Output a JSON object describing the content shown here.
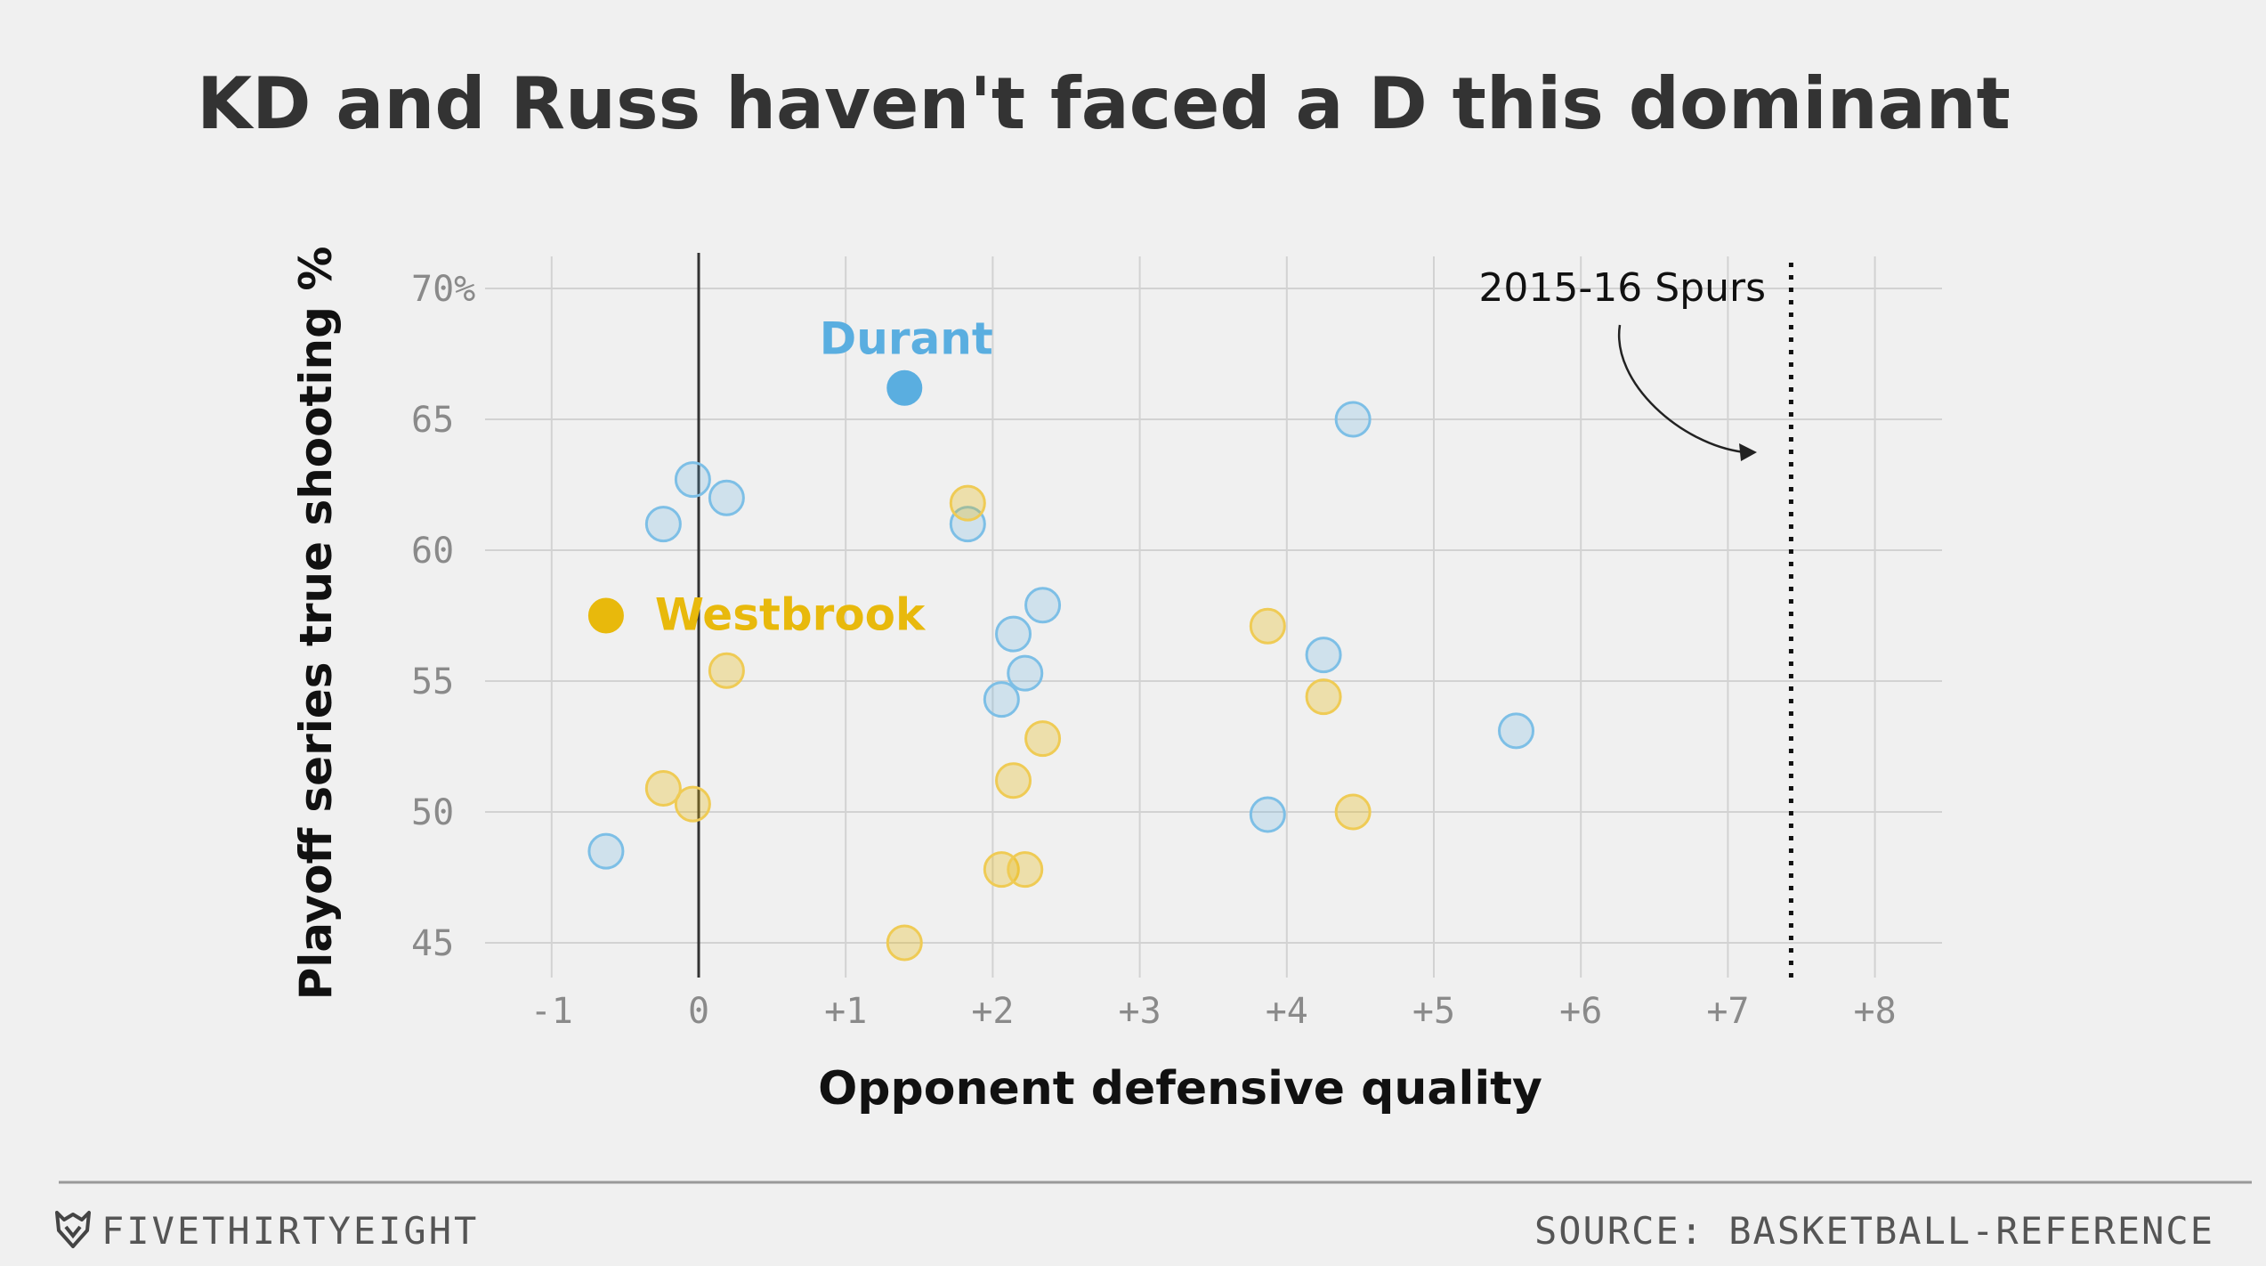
{
  "header": {
    "title": "KD and Russ haven't faced a D this dominant"
  },
  "footer": {
    "brand": "FIVETHIRTYEIGHT",
    "source": "SOURCE: BASKETBALL-REFERENCE"
  },
  "colors": {
    "background": "#f0f0f0",
    "durant": "#5aaee0",
    "westbrook": "#e8b90c",
    "grid": "#d2d2d2",
    "zero_line": "#333333"
  },
  "icons": {
    "brand_logo": "fox-head-icon"
  },
  "chart_data": {
    "type": "scatter",
    "xlabel": "Opponent defensive quality",
    "ylabel": "Playoff series true shooting %",
    "xlim": [
      -1.4,
      8.5
    ],
    "ylim": [
      43.5,
      71
    ],
    "x_ticks": [
      -1,
      0,
      1,
      2,
      3,
      4,
      5,
      6,
      7,
      8
    ],
    "x_tick_labels": [
      "-1",
      "0",
      "+1",
      "+2",
      "+3",
      "+4",
      "+5",
      "+6",
      "+7",
      "+8"
    ],
    "y_ticks": [
      45,
      50,
      55,
      60,
      65,
      70
    ],
    "y_tick_labels": [
      "45",
      "50",
      "55",
      "60",
      "65",
      "70%"
    ],
    "grid": true,
    "series": [
      {
        "name": "Durant",
        "color": "#5aaee0",
        "points": [
          {
            "x": -0.63,
            "y": 48.5
          },
          {
            "x": -0.24,
            "y": 61.0
          },
          {
            "x": -0.04,
            "y": 62.7
          },
          {
            "x": 0.19,
            "y": 62.0
          },
          {
            "x": 1.83,
            "y": 61.0
          },
          {
            "x": 2.06,
            "y": 54.3
          },
          {
            "x": 2.14,
            "y": 56.8
          },
          {
            "x": 2.22,
            "y": 55.3
          },
          {
            "x": 2.34,
            "y": 57.9
          },
          {
            "x": 3.87,
            "y": 49.9
          },
          {
            "x": 4.25,
            "y": 56.0
          },
          {
            "x": 4.45,
            "y": 65.0
          },
          {
            "x": 5.56,
            "y": 53.1
          }
        ],
        "highlight": {
          "x": 1.4,
          "y": 66.2,
          "label": "Durant"
        }
      },
      {
        "name": "Westbrook",
        "color": "#e8b90c",
        "points": [
          {
            "x": -0.24,
            "y": 50.9
          },
          {
            "x": -0.04,
            "y": 50.3
          },
          {
            "x": 0.19,
            "y": 55.4
          },
          {
            "x": 1.4,
            "y": 45.0
          },
          {
            "x": 1.83,
            "y": 61.8
          },
          {
            "x": 2.06,
            "y": 47.8
          },
          {
            "x": 2.14,
            "y": 51.2
          },
          {
            "x": 2.22,
            "y": 47.8
          },
          {
            "x": 2.34,
            "y": 52.8
          },
          {
            "x": 3.87,
            "y": 57.1
          },
          {
            "x": 4.25,
            "y": 54.4
          },
          {
            "x": 4.45,
            "y": 50.0
          }
        ],
        "highlight": {
          "x": -0.63,
          "y": 57.5,
          "label": "Westbrook"
        }
      }
    ],
    "reference_line": {
      "x": 7.43,
      "label": "2015-16 Spurs",
      "style": "dotted"
    }
  }
}
